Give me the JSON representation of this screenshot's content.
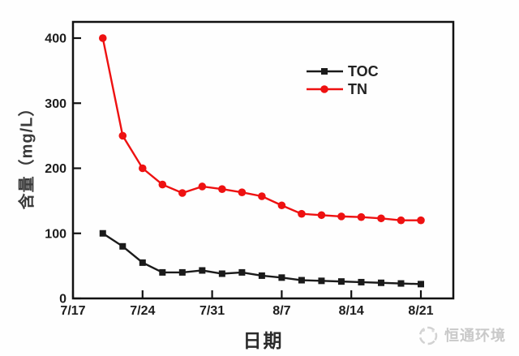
{
  "watermark": {
    "text": "恒通环境",
    "logo": "swirl-circle-logo"
  },
  "colors": {
    "toc_series": "#1a1a1a",
    "tn_series": "#ee1111",
    "axis": "#111111",
    "tick_text": "#1c1c1c",
    "watermark_gray": "#c9c9c9"
  },
  "chart_data": {
    "type": "line",
    "title": "",
    "xlabel": "日期",
    "ylabel": "含量（mg/L）",
    "grid": false,
    "legend_position": "inside-top-right",
    "x_axis": {
      "tick_labels": [
        "7/17",
        "7/24",
        "7/31",
        "8/7",
        "8/14",
        "8/21"
      ],
      "tick_day_offsets": [
        0,
        7,
        14,
        21,
        28,
        35
      ],
      "xlim_days": [
        0,
        38.2
      ]
    },
    "y_axis": {
      "tick_labels": [
        "0",
        "100",
        "200",
        "300",
        "400"
      ],
      "tick_values": [
        0,
        100,
        200,
        300,
        400
      ],
      "ylim": [
        0,
        426
      ]
    },
    "x_dates": [
      "7/20",
      "7/22",
      "7/24",
      "7/26",
      "7/28",
      "7/30",
      "8/1",
      "8/3",
      "8/5",
      "8/7",
      "8/9",
      "8/11",
      "8/13",
      "8/15",
      "8/17",
      "8/19",
      "8/21"
    ],
    "x_day_offsets": [
      3,
      5,
      7,
      9,
      11,
      13,
      15,
      17,
      19,
      21,
      23,
      25,
      27,
      29,
      31,
      33,
      35
    ],
    "series": [
      {
        "name": "TOC",
        "color": "#1a1a1a",
        "marker": "square",
        "values": [
          100,
          80,
          55,
          40,
          40,
          43,
          38,
          40,
          35,
          32,
          28,
          27,
          26,
          25,
          24,
          23,
          22
        ]
      },
      {
        "name": "TN",
        "color": "#ee1111",
        "marker": "circle",
        "values": [
          400,
          250,
          200,
          175,
          162,
          172,
          168,
          163,
          157,
          143,
          130,
          128,
          126,
          125,
          123,
          120,
          120
        ]
      }
    ]
  }
}
